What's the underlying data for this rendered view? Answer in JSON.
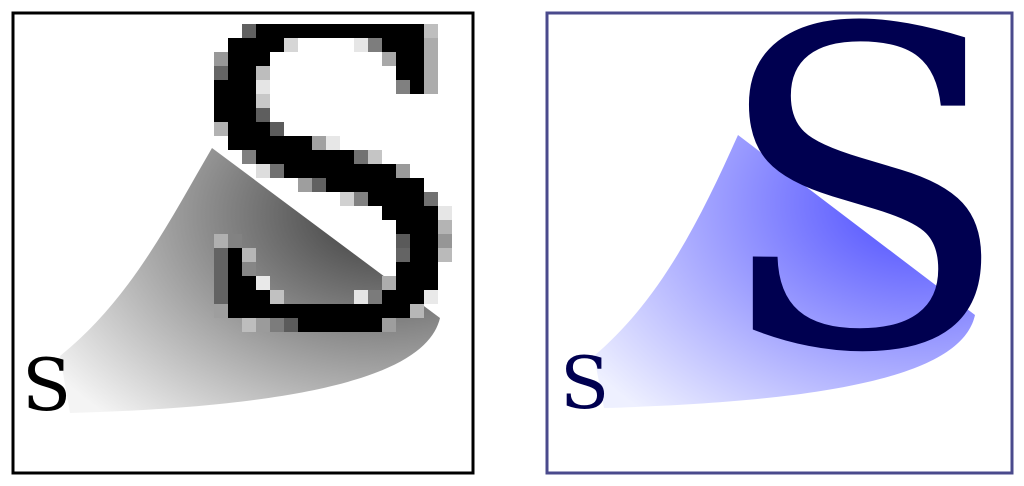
{
  "panels": [
    {
      "kind": "raster",
      "small_letter": "S",
      "large_letter": "S",
      "frame_color": "#000000",
      "glyph_color": "#000000",
      "gradient_start": "#f4f4f4",
      "gradient_end": "#3a3a3a"
    },
    {
      "kind": "vector",
      "small_letter": "S",
      "large_letter": "S",
      "frame_color": "#4a4a8c",
      "glyph_color": "#000050",
      "gradient_start": "#eef0ff",
      "gradient_end": "#4a4aff"
    }
  ]
}
